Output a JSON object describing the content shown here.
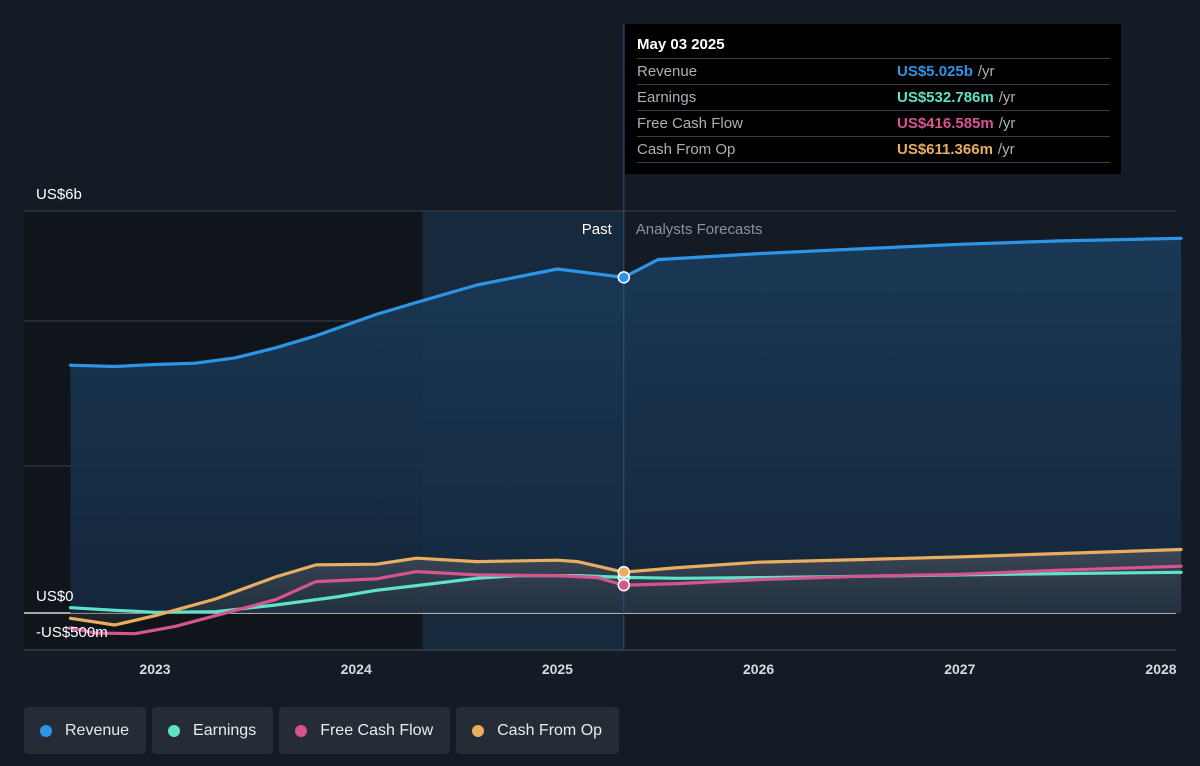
{
  "chart_data": {
    "type": "line",
    "x_ticks": [
      "2023",
      "2024",
      "2025",
      "2026",
      "2027",
      "2028"
    ],
    "y_tick_labels": [
      "US$6b",
      "US$0",
      "-US$500m"
    ],
    "ylim": [
      -500,
      6000
    ],
    "y_unit": "US$ millions",
    "grid": true,
    "section_labels": {
      "past": "Past",
      "forecast": "Analysts Forecasts"
    },
    "series": [
      {
        "name": "Revenue",
        "color": "#2d95e6",
        "points": [
          [
            2022.58,
            3710
          ],
          [
            2022.8,
            3690
          ],
          [
            2023.0,
            3720
          ],
          [
            2023.2,
            3740
          ],
          [
            2023.4,
            3820
          ],
          [
            2023.6,
            3970
          ],
          [
            2023.8,
            4150
          ],
          [
            2024.1,
            4470
          ],
          [
            2024.3,
            4650
          ],
          [
            2024.6,
            4910
          ],
          [
            2024.8,
            5030
          ],
          [
            2025.0,
            5150
          ],
          [
            2025.33,
            5025
          ],
          [
            2025.5,
            5290
          ],
          [
            2026.0,
            5380
          ],
          [
            2026.5,
            5450
          ],
          [
            2027.0,
            5520
          ],
          [
            2027.5,
            5570
          ],
          [
            2028.1,
            5610
          ]
        ]
      },
      {
        "name": "Earnings",
        "color": "#5ee3c8",
        "points": [
          [
            2022.58,
            80
          ],
          [
            2022.8,
            40
          ],
          [
            2023.0,
            10
          ],
          [
            2023.3,
            20
          ],
          [
            2023.6,
            120
          ],
          [
            2023.9,
            240
          ],
          [
            2024.1,
            340
          ],
          [
            2024.3,
            410
          ],
          [
            2024.6,
            520
          ],
          [
            2024.8,
            560
          ],
          [
            2025.1,
            560
          ],
          [
            2025.33,
            532.786
          ],
          [
            2025.6,
            520
          ],
          [
            2026.0,
            530
          ],
          [
            2026.5,
            550
          ],
          [
            2027.0,
            570
          ],
          [
            2027.5,
            590
          ],
          [
            2028.1,
            610
          ]
        ]
      },
      {
        "name": "Free Cash Flow",
        "color": "#d6548f",
        "points": [
          [
            2022.58,
            -220
          ],
          [
            2022.7,
            -300
          ],
          [
            2022.9,
            -310
          ],
          [
            2023.1,
            -200
          ],
          [
            2023.3,
            -40
          ],
          [
            2023.6,
            200
          ],
          [
            2023.8,
            470
          ],
          [
            2024.1,
            510
          ],
          [
            2024.3,
            620
          ],
          [
            2024.6,
            570
          ],
          [
            2025.0,
            560
          ],
          [
            2025.2,
            530
          ],
          [
            2025.33,
            416.585
          ],
          [
            2025.6,
            440
          ],
          [
            2026.0,
            500
          ],
          [
            2026.5,
            550
          ],
          [
            2027.0,
            580
          ],
          [
            2027.5,
            640
          ],
          [
            2028.1,
            700
          ]
        ]
      },
      {
        "name": "Cash From Op",
        "color": "#e8ad5e",
        "points": [
          [
            2022.58,
            -80
          ],
          [
            2022.8,
            -180
          ],
          [
            2023.0,
            -40
          ],
          [
            2023.3,
            210
          ],
          [
            2023.6,
            540
          ],
          [
            2023.8,
            720
          ],
          [
            2024.1,
            730
          ],
          [
            2024.3,
            820
          ],
          [
            2024.6,
            770
          ],
          [
            2025.0,
            790
          ],
          [
            2025.1,
            770
          ],
          [
            2025.33,
            611.366
          ],
          [
            2025.6,
            680
          ],
          [
            2026.0,
            760
          ],
          [
            2026.5,
            800
          ],
          [
            2027.0,
            840
          ],
          [
            2027.5,
            890
          ],
          [
            2028.1,
            950
          ]
        ]
      }
    ]
  },
  "tooltip": {
    "date": "May 03 2025",
    "rows": [
      {
        "name": "Revenue",
        "value": "US$5.025b",
        "unit": "/yr",
        "color": "#2d95e6"
      },
      {
        "name": "Earnings",
        "value": "US$532.786m",
        "unit": "/yr",
        "color": "#5ee3c8"
      },
      {
        "name": "Free Cash Flow",
        "value": "US$416.585m",
        "unit": "/yr",
        "color": "#d6548f"
      },
      {
        "name": "Cash From Op",
        "value": "US$611.366m",
        "unit": "/yr",
        "color": "#e8ad5e"
      }
    ]
  },
  "legend": [
    {
      "label": "Revenue",
      "color": "#2d95e6"
    },
    {
      "label": "Earnings",
      "color": "#5ee3c8"
    },
    {
      "label": "Free Cash Flow",
      "color": "#d6548f"
    },
    {
      "label": "Cash From Op",
      "color": "#e8ad5e"
    }
  ]
}
